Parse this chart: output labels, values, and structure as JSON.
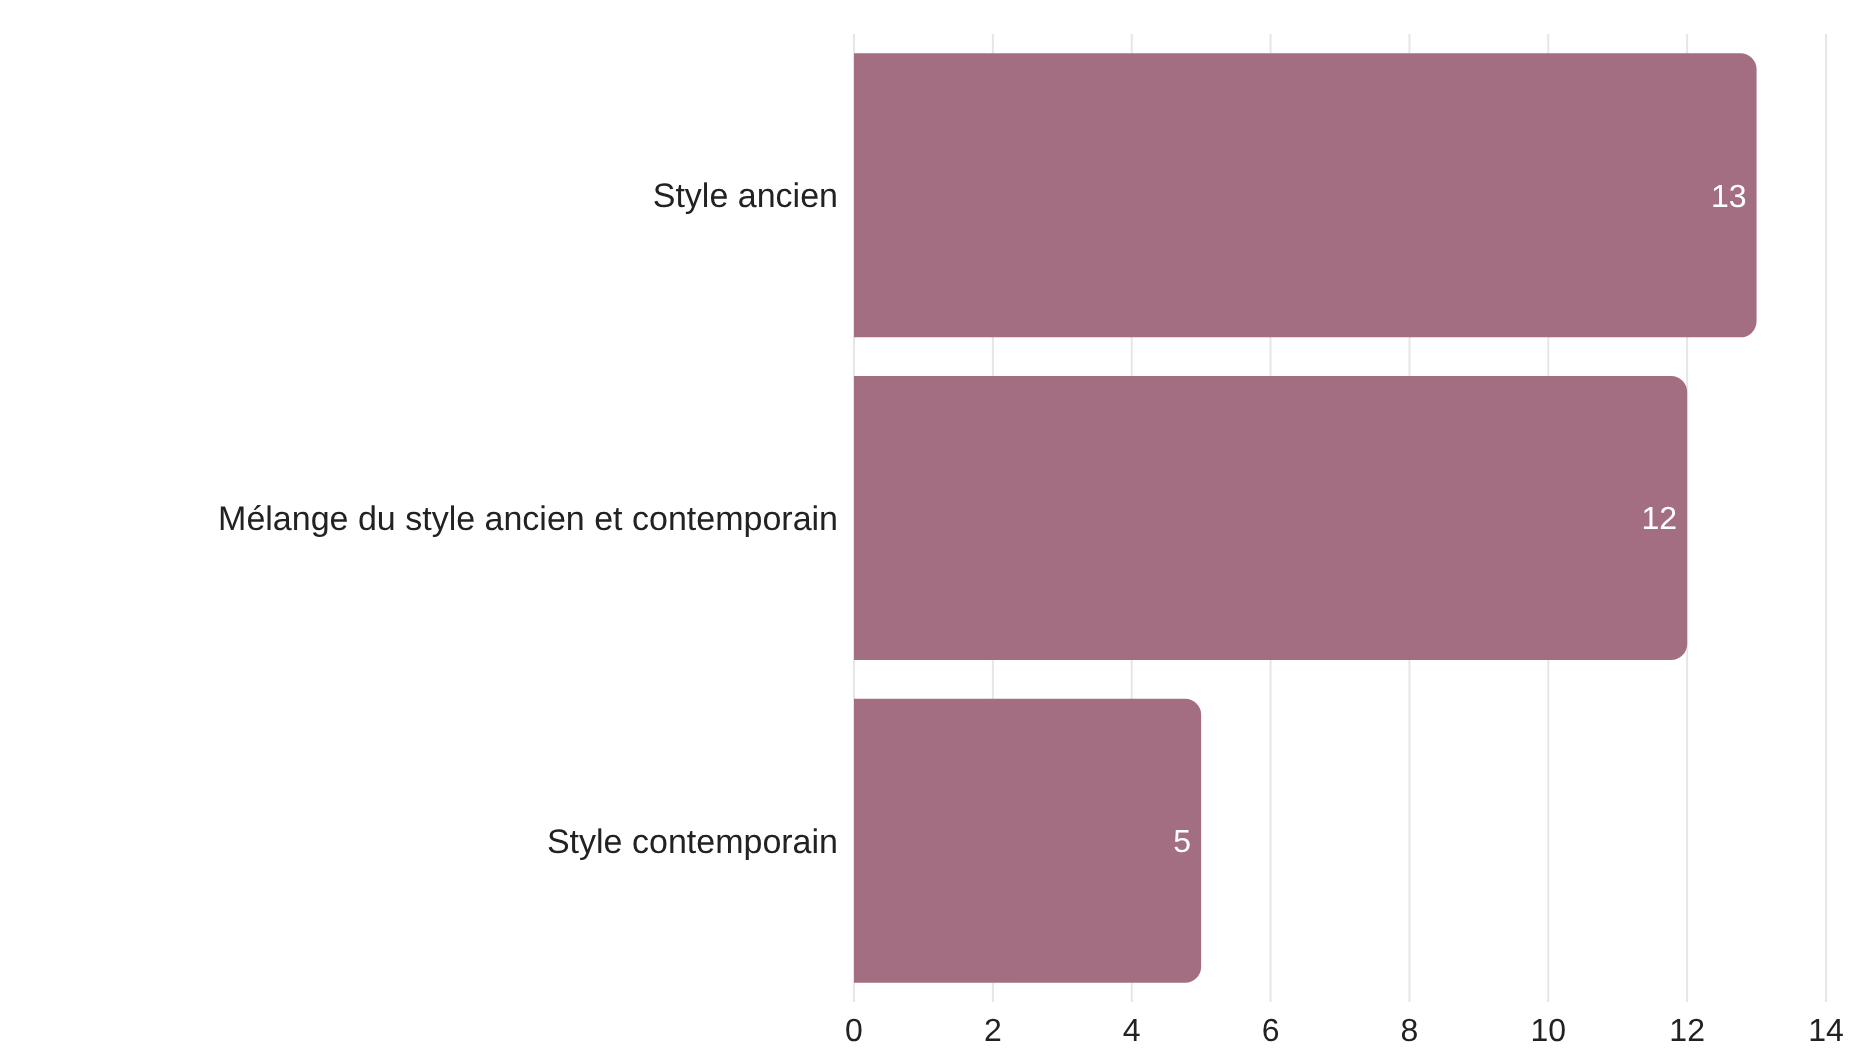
{
  "chart_data": {
    "type": "bar",
    "orientation": "horizontal",
    "categories": [
      "Style ancien",
      "Mélange du style ancien et contemporain",
      "Style contemporain"
    ],
    "values": [
      13,
      12,
      5
    ],
    "color": "#a36e82",
    "xlim": [
      0,
      14
    ],
    "xticks": [
      0,
      2,
      4,
      6,
      8,
      10,
      12,
      14
    ],
    "grid": "x",
    "data_labels": true,
    "legend": false
  }
}
